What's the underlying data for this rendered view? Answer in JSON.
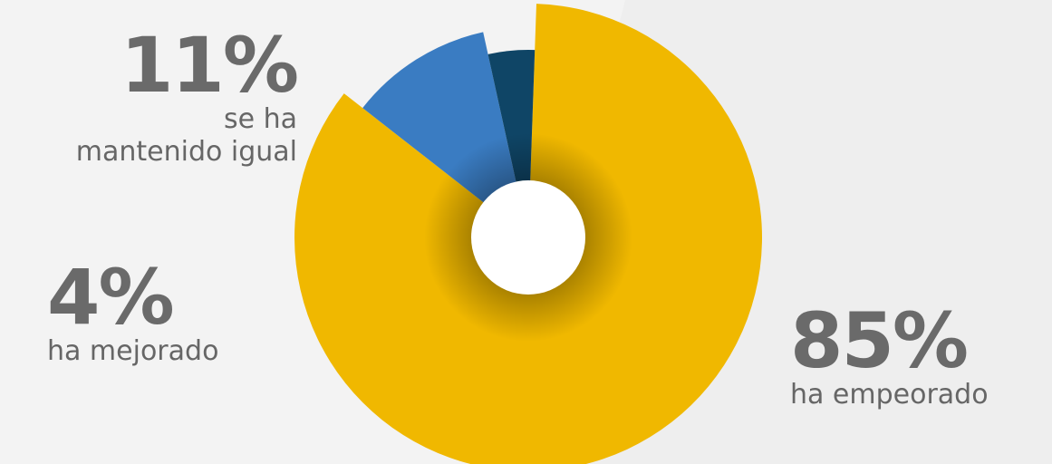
{
  "chart_data": {
    "type": "pie",
    "donut": true,
    "categories": [
      "se ha mantenido igual",
      "ha mejorado",
      "ha empeorado"
    ],
    "values": [
      11,
      4,
      85
    ],
    "labels": [
      {
        "value_text": "11%",
        "line1": "se ha",
        "line2": "mantenido igual"
      },
      {
        "value_text": "4%",
        "line1": "ha mejorado"
      },
      {
        "value_text": "85%",
        "line1": "ha empeorado"
      }
    ],
    "colors": [
      "#3a7cc2",
      "#0f4566",
      "#f0b800"
    ]
  },
  "background": "#f0f0f0"
}
